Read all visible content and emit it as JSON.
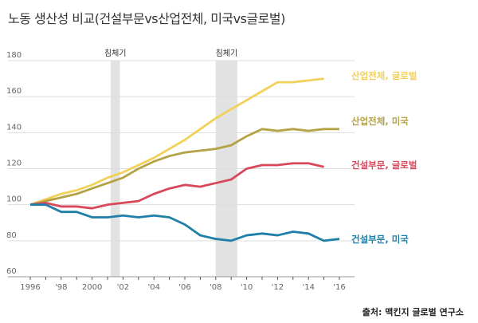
{
  "title": "노동 생산성 비교(건설부문vs산업전체, 미국vs글로벌)",
  "source": "출처: 맥킨지 글로벌 연구소",
  "chart_data": {
    "type": "line",
    "title": "노동 생산성 비교(건설부문vs산업전체, 미국vs글로벌)",
    "xlim": [
      1996,
      2016
    ],
    "ylim": [
      60,
      180
    ],
    "yticks": [
      60,
      80,
      100,
      120,
      140,
      160,
      180
    ],
    "xtick_labels": [
      {
        "x": 1996,
        "label": "1996"
      },
      {
        "x": 1998,
        "label": "'98"
      },
      {
        "x": 2000,
        "label": "2000"
      },
      {
        "x": 2002,
        "label": "'02"
      },
      {
        "x": 2004,
        "label": "'04"
      },
      {
        "x": 2006,
        "label": "'06"
      },
      {
        "x": 2008,
        "label": "'08"
      },
      {
        "x": 2010,
        "label": "'10"
      },
      {
        "x": 2012,
        "label": "'12"
      },
      {
        "x": 2014,
        "label": "'14"
      },
      {
        "x": 2016,
        "label": "'16"
      }
    ],
    "grid": true,
    "recessions": [
      {
        "label": "침체기",
        "from": 2001.2,
        "to": 2001.8
      },
      {
        "label": "침체기",
        "from": 2008,
        "to": 2009.4
      }
    ],
    "series": [
      {
        "name": "산업전체, 글로벌",
        "color": "#f2d15a",
        "x": [
          1996,
          1997,
          1998,
          1999,
          2000,
          2001,
          2002,
          2003,
          2004,
          2005,
          2006,
          2007,
          2008,
          2009,
          2010,
          2011,
          2012,
          2013,
          2014,
          2015
        ],
        "values": [
          100,
          103,
          106,
          108,
          111,
          115,
          118,
          122,
          126,
          131,
          136,
          142,
          148,
          153,
          158,
          163,
          168,
          168,
          169,
          170
        ]
      },
      {
        "name": "산업전체, 미국",
        "color": "#b5a246",
        "x": [
          1996,
          1997,
          1998,
          1999,
          2000,
          2001,
          2002,
          2003,
          2004,
          2005,
          2006,
          2007,
          2008,
          2009,
          2010,
          2011,
          2012,
          2013,
          2014,
          2015,
          2016
        ],
        "values": [
          100,
          102,
          104,
          106,
          109,
          112,
          115,
          120,
          124,
          127,
          129,
          130,
          131,
          133,
          138,
          142,
          141,
          142,
          141,
          142,
          142
        ]
      },
      {
        "name": "건설부문, 글로벌",
        "color": "#d9485a",
        "x": [
          1996,
          1997,
          1998,
          1999,
          2000,
          2001,
          2002,
          2003,
          2004,
          2005,
          2006,
          2007,
          2008,
          2009,
          2010,
          2011,
          2012,
          2013,
          2014,
          2015
        ],
        "values": [
          100,
          101,
          99,
          99,
          98,
          100,
          101,
          102,
          106,
          109,
          111,
          110,
          112,
          114,
          120,
          122,
          122,
          123,
          123,
          121
        ]
      },
      {
        "name": "건설부문, 미국",
        "color": "#1f7fa8",
        "x": [
          1996,
          1997,
          1998,
          1999,
          2000,
          2001,
          2002,
          2003,
          2004,
          2005,
          2006,
          2007,
          2008,
          2009,
          2010,
          2011,
          2012,
          2013,
          2014,
          2015,
          2016
        ],
        "values": [
          100,
          100,
          96,
          96,
          93,
          93,
          94,
          93,
          94,
          93,
          89,
          83,
          81,
          80,
          83,
          84,
          83,
          85,
          84,
          80,
          81
        ]
      }
    ]
  }
}
